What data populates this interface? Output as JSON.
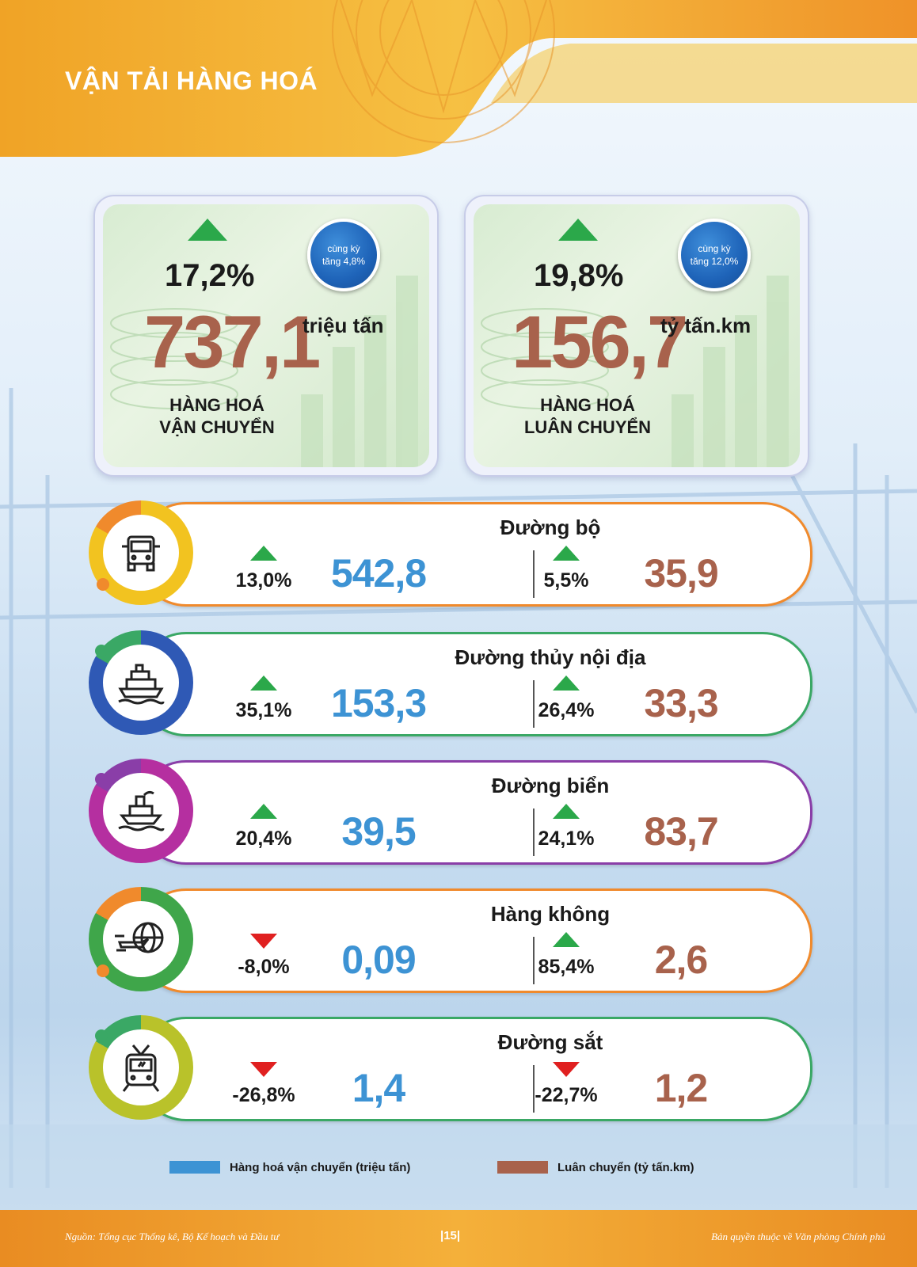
{
  "header": {
    "title": "VẬN TẢI HÀNG HOÁ",
    "accent_color": "#f2a531"
  },
  "stats": [
    {
      "change_pct": "17,2%",
      "direction": "up",
      "badge_line1": "cùng kỳ",
      "badge_line2": "tăng 4,8%",
      "value": "737,1",
      "unit": "triệu tấn",
      "label_line1": "HÀNG HOÁ",
      "label_line2": "VẬN CHUYỂN"
    },
    {
      "change_pct": "19,8%",
      "direction": "up",
      "badge_line1": "cùng kỳ",
      "badge_line2": "tăng 12,0%",
      "value": "156,7",
      "unit": "tỷ tấn.km",
      "label_line1": "HÀNG HOÁ",
      "label_line2": "LUÂN CHUYỂN"
    }
  ],
  "modes": [
    {
      "name": "Đường bộ",
      "icon": "truck-icon",
      "ring_color": "#f2c320",
      "border_color": "#f08a2c",
      "transport_pct": "13,0%",
      "transport_dir": "up",
      "transport_value": "542,8",
      "rotation_pct": "5,5%",
      "rotation_dir": "up",
      "rotation_value": "35,9"
    },
    {
      "name": "Đường thủy nội địa",
      "icon": "ferry-icon",
      "ring_color": "#2f59b5",
      "border_color": "#3aa865",
      "transport_pct": "35,1%",
      "transport_dir": "up",
      "transport_value": "153,3",
      "rotation_pct": "26,4%",
      "rotation_dir": "up",
      "rotation_value": "33,3"
    },
    {
      "name": "Đường biển",
      "icon": "ship-icon",
      "ring_color": "#b52fa0",
      "border_color": "#8a3ea8",
      "transport_pct": "20,4%",
      "transport_dir": "up",
      "transport_value": "39,5",
      "rotation_pct": "24,1%",
      "rotation_dir": "up",
      "rotation_value": "83,7"
    },
    {
      "name": "Hàng không",
      "icon": "airplane-globe-icon",
      "ring_color": "#3fa64a",
      "border_color": "#f08a2c",
      "transport_pct": "-8,0%",
      "transport_dir": "down",
      "transport_value": "0,09",
      "rotation_pct": "85,4%",
      "rotation_dir": "up",
      "rotation_value": "2,6"
    },
    {
      "name": "Đường sắt",
      "icon": "train-icon",
      "ring_color": "#b9c22a",
      "border_color": "#3aa865",
      "transport_pct": "-26,8%",
      "transport_dir": "down",
      "transport_value": "1,4",
      "rotation_pct": "-22,7%",
      "rotation_dir": "down",
      "rotation_value": "1,2"
    }
  ],
  "legend": {
    "transport_label": "Hàng hoá vận chuyển (triệu tấn)",
    "transport_color": "#3d93d4",
    "rotation_label": "Luân chuyển (tỷ tấn.km)",
    "rotation_color": "#a8624c"
  },
  "footer": {
    "source": "Nguồn: Tổng cục Thống kê, Bộ Kế hoạch và Đầu tư",
    "page": "|15|",
    "copyright": "Bản quyền thuộc về Văn phòng Chính phủ"
  }
}
